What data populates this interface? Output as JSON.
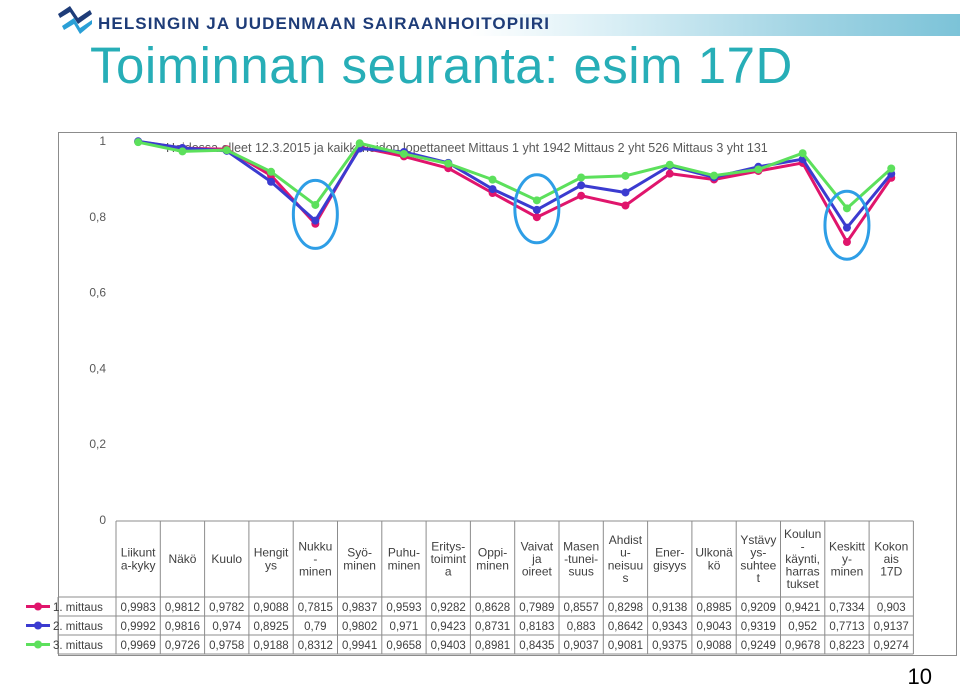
{
  "header": {
    "org": "HELSINGIN JA UUDENMAAN SAIRAANHOITOPIIRI",
    "title": "Toiminnan seuranta: esim 17D",
    "page_number": "10"
  },
  "chart_data": {
    "type": "line",
    "title": "Hoidossa olleet 12.3.2015 ja kaikki hoidon lopettaneet Mittaus 1 yht 1942 Mittaus 2 yht 526 Mittaus 3 yht 131",
    "ylim": [
      0,
      1
    ],
    "yticks": [
      "1",
      "0,8",
      "0,6",
      "0,4",
      "0,2",
      "0"
    ],
    "categories": [
      [
        "Liikunt",
        "a-kyky"
      ],
      [
        "Näkö"
      ],
      [
        "Kuulo"
      ],
      [
        "Hengit",
        "ys"
      ],
      [
        "Nukku",
        "-",
        "minen"
      ],
      [
        "Syö-",
        "minen"
      ],
      [
        "Puhu-",
        "minen"
      ],
      [
        "Eritys-",
        "toimint",
        "a"
      ],
      [
        "Oppi-",
        "minen"
      ],
      [
        "Vaivat",
        "ja",
        "oireet"
      ],
      [
        "Masen",
        "-tunei-",
        "suus"
      ],
      [
        "Ahdist",
        "u-",
        "neisuu",
        "s"
      ],
      [
        "Ener-",
        "gisyys"
      ],
      [
        "Ulkonä",
        "kö"
      ],
      [
        "Ystävy",
        "ys-",
        "suhtee",
        "t"
      ],
      [
        "Koulun",
        "-",
        "käynti,",
        "harras",
        "tukset"
      ],
      [
        "Keskitt",
        "y-",
        "minen"
      ],
      [
        "Kokon",
        "ais",
        "17D"
      ]
    ],
    "series": [
      {
        "name": "1. mittaus",
        "color": "#e0156c",
        "values": [
          0.9983,
          0.9812,
          0.9782,
          0.9088,
          0.7815,
          0.9837,
          0.9593,
          0.9282,
          0.8628,
          0.7989,
          0.8557,
          0.8298,
          0.9138,
          0.8985,
          0.9209,
          0.9421,
          0.7334,
          0.903
        ],
        "labels": [
          "0,9983",
          "0,9812",
          "0,9782",
          "0,9088",
          "0,7815",
          "0,9837",
          "0,9593",
          "0,9282",
          "0,8628",
          "0,7989",
          "0,8557",
          "0,8298",
          "0,9138",
          "0,8985",
          "0,9209",
          "0,9421",
          "0,7334",
          "0,903"
        ]
      },
      {
        "name": "2. mittaus",
        "color": "#3b3bd0",
        "values": [
          0.9992,
          0.9816,
          0.974,
          0.8925,
          0.79,
          0.9802,
          0.971,
          0.9423,
          0.8731,
          0.8183,
          0.883,
          0.8642,
          0.9343,
          0.9043,
          0.9319,
          0.952,
          0.7713,
          0.9137
        ],
        "labels": [
          "0,9992",
          "0,9816",
          "0,974",
          "0,8925",
          "0,79",
          "0,9802",
          "0,971",
          "0,9423",
          "0,8731",
          "0,8183",
          "0,883",
          "0,8642",
          "0,9343",
          "0,9043",
          "0,9319",
          "0,952",
          "0,7713",
          "0,9137"
        ]
      },
      {
        "name": "3. mittaus",
        "color": "#5ce05c",
        "values": [
          0.9969,
          0.9726,
          0.9758,
          0.9188,
          0.8312,
          0.9941,
          0.9658,
          0.9403,
          0.8981,
          0.8435,
          0.9037,
          0.9081,
          0.9375,
          0.9088,
          0.9249,
          0.9678,
          0.8223,
          0.9274
        ],
        "labels": [
          "0,9969",
          "0,9726",
          "0,9758",
          "0,9188",
          "0,8312",
          "0,9941",
          "0,9658",
          "0,9403",
          "0,8981",
          "0,8435",
          "0,9037",
          "0,9081",
          "0,9375",
          "0,9088",
          "0,9249",
          "0,9678",
          "0,8223",
          "0,9274"
        ]
      }
    ],
    "highlighted_categories": [
      4,
      9,
      16
    ],
    "highlight_color": "#2e9ee6",
    "grid": false,
    "legend_placement": "table-left"
  }
}
